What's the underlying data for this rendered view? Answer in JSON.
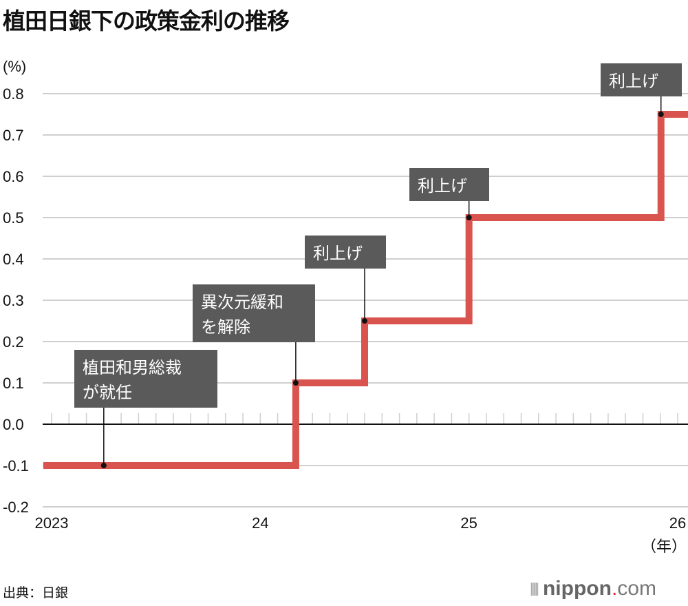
{
  "title": "植田日銀下の政策金利の推移",
  "source": "出典：日銀",
  "logo": {
    "main": "nippon",
    "dot": ".",
    "suffix": "com"
  },
  "chart_data": {
    "type": "line",
    "step": true,
    "title": "植田日銀下の政策金利の推移",
    "ylabel": "(%)",
    "xlabel": "（年）",
    "ylim": [
      -0.2,
      0.8
    ],
    "yticks": [
      -0.2,
      -0.1,
      0.0,
      0.1,
      0.2,
      0.3,
      0.4,
      0.5,
      0.6,
      0.7,
      0.8
    ],
    "ytick_labels": [
      "-0.2",
      "-0.1",
      "0.0",
      "0.1",
      "0.2",
      "0.3",
      "0.4",
      "0.5",
      "0.6",
      "0.7",
      "0.8"
    ],
    "xlim": [
      2023.0,
      2026.0
    ],
    "xticks": [
      2023,
      2024,
      2025,
      2026
    ],
    "xtick_labels": [
      "2023",
      "24",
      "25",
      "26"
    ],
    "minor_ticks": "monthly",
    "grid": true,
    "color": "#d9534f",
    "series": [
      {
        "name": "政策金利",
        "x": [
          2022.96,
          2024.17,
          2024.5,
          2025.0,
          2025.92,
          2026.05
        ],
        "y": [
          -0.1,
          0.1,
          0.25,
          0.5,
          0.75,
          0.75
        ]
      }
    ],
    "annotations": [
      {
        "lines": [
          "植田和男総裁",
          "が就任"
        ],
        "x": 2023.25,
        "y": -0.1
      },
      {
        "lines": [
          "異次元緩和",
          "を解除"
        ],
        "x": 2024.17,
        "y": 0.1
      },
      {
        "lines": [
          "利上げ"
        ],
        "x": 2024.5,
        "y": 0.25
      },
      {
        "lines": [
          "利上げ"
        ],
        "x": 2025.0,
        "y": 0.5
      },
      {
        "lines": [
          "利上げ"
        ],
        "x": 2025.92,
        "y": 0.75
      }
    ]
  }
}
